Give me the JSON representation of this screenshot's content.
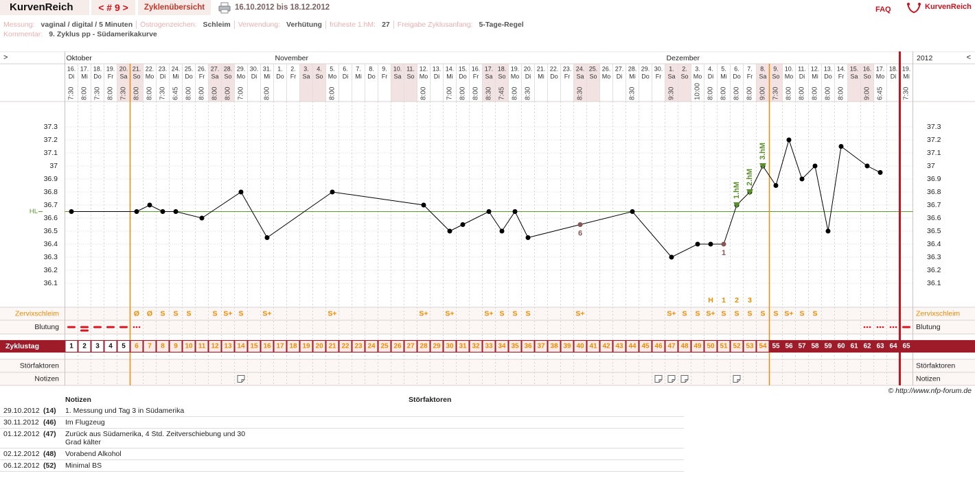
{
  "header": {
    "app_tab": "KurvenReich",
    "cycle_nav": "< # 9 >",
    "overview_tab": "Zyklenübersicht",
    "period": "16.10.2012 bis 18.12.2012",
    "faq": "FAQ",
    "logo": "KurvenReich"
  },
  "info": {
    "fields": [
      {
        "label": "Messung:",
        "value": "vaginal / digital / 5 Minuten"
      },
      {
        "label": "Östrogenzeichen:",
        "value": "Schleim"
      },
      {
        "label": "Verwendung:",
        "value": "Verhütung"
      },
      {
        "label": "früheste 1.hM:",
        "value": "27"
      },
      {
        "label": "Freigabe Zyklusanfang:",
        "value": "5-Tage-Regel"
      }
    ],
    "comment_label": "Kommentar:",
    "comment": "9. Zyklus pp - Südamerikakurve"
  },
  "chart_data": {
    "type": "line",
    "nav_prev": ">",
    "nav_next": "<",
    "year": "2012",
    "months": [
      {
        "name": "Oktober",
        "cycle_day": 1
      },
      {
        "name": "November",
        "cycle_day": 17
      },
      {
        "name": "Dezember",
        "cycle_day": 47
      }
    ],
    "day_labels": [
      "16.",
      "17.",
      "18.",
      "19.",
      "20.",
      "21.",
      "22.",
      "23.",
      "24.",
      "25.",
      "26.",
      "27.",
      "28.",
      "29.",
      "30.",
      "31.",
      "1.",
      "2.",
      "3.",
      "4.",
      "5.",
      "6.",
      "7.",
      "8.",
      "9.",
      "10.",
      "11.",
      "12.",
      "13.",
      "14.",
      "15.",
      "16.",
      "17.",
      "18.",
      "19.",
      "20.",
      "21.",
      "22.",
      "23.",
      "24.",
      "25.",
      "26.",
      "27.",
      "28.",
      "29.",
      "30.",
      "1.",
      "2.",
      "3.",
      "4.",
      "5.",
      "6.",
      "7.",
      "8.",
      "9.",
      "10.",
      "11.",
      "12.",
      "13.",
      "14.",
      "15.",
      "16.",
      "17.",
      "18.",
      "19."
    ],
    "weekdays": [
      "Di",
      "Mi",
      "Do",
      "Fr",
      "Sa",
      "So",
      "Mo",
      "Di",
      "Mi",
      "Do",
      "Fr",
      "Sa",
      "So",
      "Mo",
      "Di",
      "Mi",
      "Do",
      "Fr",
      "Sa",
      "So",
      "Mo",
      "Di",
      "Mi",
      "Do",
      "Fr",
      "Sa",
      "So",
      "Mo",
      "Di",
      "Mi",
      "Do",
      "Fr",
      "Sa",
      "So",
      "Mo",
      "Di",
      "Mi",
      "Do",
      "Fr",
      "Sa",
      "So",
      "Mo",
      "Di",
      "Mi",
      "Do",
      "Fr",
      "Sa",
      "So",
      "Mo",
      "Di",
      "Mi",
      "Do",
      "Fr",
      "Sa",
      "So",
      "Mo",
      "Di",
      "Mi",
      "Do",
      "Fr",
      "Sa",
      "So",
      "Mo",
      "Di",
      "Mi"
    ],
    "times": [
      "7:30",
      "8:00",
      "7:30",
      "8:00",
      "7:30",
      "8:00",
      "8:00",
      "7:30",
      "6:45",
      "8:00",
      "8:00",
      "8:00",
      "8:00",
      "7:00",
      null,
      "8:00",
      null,
      null,
      null,
      null,
      "8:00",
      null,
      null,
      null,
      null,
      null,
      null,
      "8:00",
      null,
      "7:00",
      "8:00",
      "8:00",
      "8:30",
      "7:45",
      "8:00",
      "8:30",
      null,
      null,
      null,
      "8:30",
      null,
      null,
      null,
      "8:30",
      null,
      null,
      "9:30",
      null,
      "10:00",
      "8:00",
      "8:00",
      "8:00",
      "8:00",
      "9:00",
      "7:30",
      "8:00",
      "8:00",
      "8:00",
      "8:00",
      "8:00",
      null,
      "9:00",
      "6:45",
      null,
      "7:30"
    ],
    "cycle_days": [
      1,
      2,
      3,
      4,
      5,
      6,
      7,
      8,
      9,
      10,
      11,
      12,
      13,
      14,
      15,
      16,
      17,
      18,
      19,
      20,
      21,
      22,
      23,
      24,
      25,
      26,
      27,
      28,
      29,
      30,
      31,
      32,
      33,
      34,
      35,
      36,
      37,
      38,
      39,
      40,
      41,
      42,
      43,
      44,
      45,
      46,
      47,
      48,
      49,
      50,
      51,
      52,
      53,
      54,
      55,
      56,
      57,
      58,
      59,
      60,
      61,
      62,
      63,
      64,
      65
    ],
    "shaded_weekdays": [
      "Sa",
      "So"
    ],
    "temperature": {
      "color": "#000000",
      "x": [
        1,
        6,
        7,
        8,
        9,
        11,
        14,
        16,
        21,
        28,
        30,
        31,
        33,
        34,
        35,
        36,
        40,
        44,
        47,
        49,
        50,
        51,
        52,
        53,
        54,
        55,
        56,
        57,
        58,
        59,
        60,
        62,
        63
      ],
      "values": [
        36.65,
        36.65,
        36.7,
        36.65,
        36.65,
        36.6,
        36.8,
        36.45,
        36.8,
        36.7,
        36.5,
        36.55,
        36.65,
        36.5,
        36.65,
        36.45,
        36.55,
        36.65,
        36.3,
        36.4,
        36.4,
        36.4,
        36.7,
        36.8,
        37.0,
        36.85,
        37.2,
        36.9,
        37.0,
        36.5,
        37.15,
        37.0,
        36.95
      ]
    },
    "ylim": [
      35.9,
      37.5
    ],
    "yticks": [
      36.1,
      36.2,
      36.3,
      36.4,
      36.5,
      36.6,
      36.7,
      36.8,
      36.9,
      37,
      37.1,
      37.2,
      37.3
    ],
    "grid": true,
    "cover_line": {
      "label": "HL",
      "value": 36.65,
      "color": "#5b9a2d"
    },
    "low_labels": {
      "color": "#8a5555",
      "items": [
        {
          "x": 40,
          "label": "6"
        },
        {
          "x": 51,
          "label": "1"
        }
      ]
    },
    "rises": {
      "color": "#5b8f2d",
      "items": [
        {
          "x": 52,
          "label": "1.hM"
        },
        {
          "x": 53,
          "label": "2.hM"
        },
        {
          "x": 54,
          "label": "3.hM"
        }
      ]
    },
    "fertile_lines_after_cycle_day": [
      5,
      54
    ],
    "fertile_color": "#f08a00",
    "cycle_end_after_cycle_day": 64,
    "cycle_end_color": "#c8141e",
    "rows": {
      "cervix": {
        "label": "Zervixschleim",
        "color": "#f08a00",
        "x": [
          6,
          7,
          8,
          9,
          10,
          12,
          13,
          14,
          16,
          21,
          28,
          30,
          33,
          34,
          35,
          36,
          40,
          47,
          48,
          49,
          50,
          51,
          52,
          53,
          54,
          55,
          56,
          57,
          58
        ],
        "values": [
          "Ø",
          "Ø",
          "S",
          "S",
          "S",
          "S",
          "S+",
          "S",
          "S+",
          "S+",
          "S+",
          "S+",
          "S+",
          "S",
          "S",
          "S",
          "S+",
          "S+",
          "S",
          "S",
          "S+",
          "S",
          "S",
          "S",
          "S",
          "S",
          "S+",
          "S",
          "S"
        ]
      },
      "peak": {
        "color": "#f08a00",
        "x": [
          50,
          51,
          52,
          53
        ],
        "values": [
          "H",
          "1",
          "2",
          "3"
        ]
      },
      "bleeding": {
        "label": "Blutung",
        "color": "#d8141e",
        "x": [
          1,
          2,
          3,
          4,
          5,
          6,
          62,
          63,
          64,
          65
        ],
        "levels": [
          2,
          3,
          2,
          2,
          2,
          1,
          1,
          1,
          1,
          2
        ]
      },
      "cycle_day_label": "Zyklustag",
      "cycle_band_color": "#9e1b2a",
      "disturbance_label": "Störfaktoren",
      "notes_label": "Notizen"
    }
  },
  "footer": "© http://www.nfp-forum.de",
  "notes_table": {
    "headers": [
      "Notizen",
      "Störfaktoren"
    ],
    "rows": [
      {
        "date": "29.10.2012",
        "cycle_day": {
          "value": 14,
          "label": "(14)"
        },
        "note": "1. Messung und Tag 3 in Südamerika"
      },
      {
        "date": "30.11.2012",
        "cycle_day": {
          "value": 46,
          "label": "(46)"
        },
        "note": "Im Flugzeug"
      },
      {
        "date": "01.12.2012",
        "cycle_day": {
          "value": 47,
          "label": "(47)"
        },
        "note": "Zurück aus Südamerika, 4 Std. Zeitverschiebung und 30 Grad kälter"
      },
      {
        "date": "02.12.2012",
        "cycle_day": {
          "value": 48,
          "label": "(48)"
        },
        "note": "Vorabend Alkohol"
      },
      {
        "date": "06.12.2012",
        "cycle_day": {
          "value": 52,
          "label": "(52)"
        },
        "note": "Minimal BS"
      }
    ]
  }
}
